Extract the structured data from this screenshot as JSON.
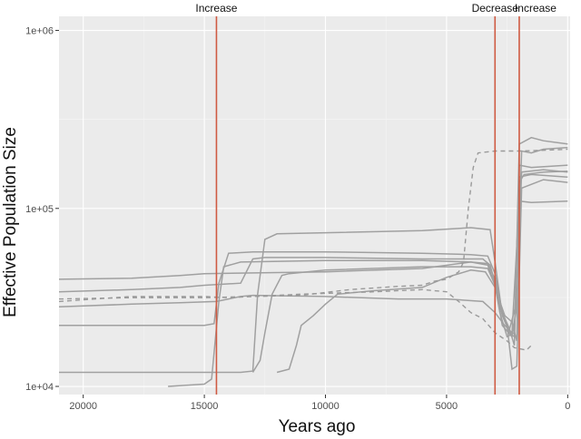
{
  "chart_data": {
    "type": "line",
    "title": "",
    "xlabel": "Years ago",
    "ylabel": "Effective Population Size",
    "x_reversed": true,
    "xlim": [
      21000,
      -100
    ],
    "ylim": [
      9000,
      1200000
    ],
    "y_scale": "log",
    "grid": true,
    "x_ticks": [
      {
        "value": 20000,
        "label": "20000"
      },
      {
        "value": 15000,
        "label": "15000"
      },
      {
        "value": 10000,
        "label": "10000"
      },
      {
        "value": 5000,
        "label": "5000"
      },
      {
        "value": 0,
        "label": "0"
      }
    ],
    "y_ticks": [
      {
        "value": 10000,
        "label": "1e+04"
      },
      {
        "value": 100000,
        "label": "1e+05"
      },
      {
        "value": 1000000,
        "label": "1e+06"
      }
    ],
    "vlines": [
      {
        "x": 14500,
        "label": "Increase"
      },
      {
        "x": 3000,
        "label": "Decrease"
      },
      {
        "x": 2000,
        "label": "Increase"
      }
    ],
    "series": [
      {
        "style": "solid",
        "points": [
          [
            21000,
            40000
          ],
          [
            18000,
            40500
          ],
          [
            16000,
            42000
          ],
          [
            15000,
            43000
          ],
          [
            10000,
            44000
          ],
          [
            6000,
            46000
          ],
          [
            4000,
            50000
          ],
          [
            3300,
            48000
          ],
          [
            3000,
            37000
          ],
          [
            2800,
            26000
          ],
          [
            2500,
            19000
          ],
          [
            2200,
            20000
          ],
          [
            2000,
            140000
          ],
          [
            1800,
            155000
          ],
          [
            1000,
            160000
          ],
          [
            0,
            162000
          ]
        ]
      },
      {
        "style": "solid",
        "points": [
          [
            21000,
            34000
          ],
          [
            18000,
            35000
          ],
          [
            16000,
            36000
          ],
          [
            15000,
            37000
          ],
          [
            13500,
            38000
          ],
          [
            13000,
            52000
          ],
          [
            12500,
            53000
          ],
          [
            10000,
            53000
          ],
          [
            6000,
            52000
          ],
          [
            4000,
            52000
          ],
          [
            3500,
            52000
          ],
          [
            3200,
            48000
          ],
          [
            3000,
            38000
          ],
          [
            2700,
            22000
          ],
          [
            2300,
            19000
          ],
          [
            2100,
            28000
          ],
          [
            1900,
            210000
          ],
          [
            1500,
            205000
          ],
          [
            1000,
            215000
          ],
          [
            0,
            220000
          ]
        ]
      },
      {
        "style": "solid",
        "points": [
          [
            21000,
            28000
          ],
          [
            18000,
            29000
          ],
          [
            16000,
            29500
          ],
          [
            14500,
            30000
          ],
          [
            14000,
            31000
          ],
          [
            13500,
            32000
          ],
          [
            13000,
            32500
          ],
          [
            10000,
            32000
          ],
          [
            7000,
            31000
          ],
          [
            5000,
            31000
          ],
          [
            3500,
            30000
          ],
          [
            3000,
            26000
          ],
          [
            2600,
            22000
          ],
          [
            2300,
            20000
          ],
          [
            2000,
            110000
          ],
          [
            1500,
            108000
          ],
          [
            0,
            110000
          ]
        ]
      },
      {
        "style": "solid",
        "points": [
          [
            21000,
            22000
          ],
          [
            16000,
            22000
          ],
          [
            15000,
            22000
          ],
          [
            14600,
            22500
          ],
          [
            14400,
            38000
          ],
          [
            14000,
            56000
          ],
          [
            13000,
            57000
          ],
          [
            10000,
            57000
          ],
          [
            6000,
            56000
          ],
          [
            4000,
            55000
          ],
          [
            3300,
            54000
          ],
          [
            3000,
            43000
          ],
          [
            2700,
            26000
          ],
          [
            2400,
            21000
          ],
          [
            2100,
            30000
          ],
          [
            1900,
            160000
          ],
          [
            1000,
            165000
          ],
          [
            0,
            160000
          ]
        ]
      },
      {
        "style": "solid",
        "points": [
          [
            21000,
            12000
          ],
          [
            16000,
            12000
          ],
          [
            13500,
            12000
          ],
          [
            13000,
            12200
          ],
          [
            12800,
            33000
          ],
          [
            12500,
            67000
          ],
          [
            12000,
            72000
          ],
          [
            10000,
            73000
          ],
          [
            6000,
            75000
          ],
          [
            4000,
            78000
          ],
          [
            3200,
            76000
          ],
          [
            3000,
            50000
          ],
          [
            2700,
            25000
          ],
          [
            2400,
            21000
          ],
          [
            2200,
            17000
          ],
          [
            2000,
            230000
          ],
          [
            1500,
            250000
          ],
          [
            1000,
            240000
          ],
          [
            0,
            230000
          ]
        ]
      },
      {
        "style": "solid",
        "points": [
          [
            16500,
            10000
          ],
          [
            15000,
            10300
          ],
          [
            14700,
            11000
          ],
          [
            14400,
            30000
          ],
          [
            14200,
            47000
          ],
          [
            13500,
            50000
          ],
          [
            10000,
            51000
          ],
          [
            6000,
            51000
          ],
          [
            4000,
            50000
          ],
          [
            3300,
            49000
          ],
          [
            3000,
            40000
          ],
          [
            2800,
            28000
          ],
          [
            2500,
            22000
          ],
          [
            2300,
            12500
          ],
          [
            2100,
            13000
          ],
          [
            1900,
            130000
          ],
          [
            1000,
            145000
          ],
          [
            0,
            140000
          ]
        ]
      },
      {
        "style": "solid",
        "points": [
          [
            13000,
            12000
          ],
          [
            12700,
            14000
          ],
          [
            12500,
            20000
          ],
          [
            12200,
            33000
          ],
          [
            11800,
            42000
          ],
          [
            11500,
            43000
          ],
          [
            10000,
            45000
          ],
          [
            6000,
            47000
          ],
          [
            4000,
            47000
          ],
          [
            3300,
            46000
          ],
          [
            3000,
            37000
          ],
          [
            2700,
            25000
          ],
          [
            2400,
            20000
          ],
          [
            2200,
            19000
          ],
          [
            2000,
            175000
          ],
          [
            1500,
            170000
          ],
          [
            0,
            175000
          ]
        ]
      },
      {
        "style": "solid",
        "points": [
          [
            12000,
            12000
          ],
          [
            11500,
            12500
          ],
          [
            11200,
            17000
          ],
          [
            11000,
            22000
          ],
          [
            10500,
            25000
          ],
          [
            10000,
            29000
          ],
          [
            9500,
            33000
          ],
          [
            8000,
            34500
          ],
          [
            6000,
            36000
          ],
          [
            5000,
            41000
          ],
          [
            4000,
            45000
          ],
          [
            3400,
            44000
          ],
          [
            3000,
            36000
          ],
          [
            2800,
            30000
          ],
          [
            2600,
            25000
          ],
          [
            2300,
            23000
          ],
          [
            2100,
            18000
          ],
          [
            2000,
            150000
          ],
          [
            1500,
            155000
          ],
          [
            0,
            150000
          ]
        ]
      },
      {
        "style": "dashed",
        "points": [
          [
            21000,
            30000
          ],
          [
            18000,
            32000
          ],
          [
            15000,
            32000
          ],
          [
            14000,
            31500
          ],
          [
            13000,
            32000
          ],
          [
            11000,
            32500
          ],
          [
            9000,
            35000
          ],
          [
            7000,
            36500
          ],
          [
            6000,
            37000
          ],
          [
            5500,
            39000
          ],
          [
            5000,
            40000
          ],
          [
            4500,
            44000
          ],
          [
            4300,
            50000
          ],
          [
            4100,
            100000
          ],
          [
            3900,
            170000
          ],
          [
            3700,
            205000
          ],
          [
            3000,
            210000
          ],
          [
            2000,
            210000
          ],
          [
            1000,
            212000
          ],
          [
            0,
            215000
          ]
        ]
      },
      {
        "style": "dashed",
        "points": [
          [
            21000,
            31000
          ],
          [
            18000,
            31500
          ],
          [
            15000,
            31500
          ],
          [
            13000,
            32000
          ],
          [
            11000,
            33000
          ],
          [
            8000,
            34000
          ],
          [
            6000,
            35000
          ],
          [
            5000,
            34000
          ],
          [
            4500,
            30000
          ],
          [
            4000,
            26000
          ],
          [
            3500,
            24000
          ],
          [
            3000,
            20000
          ],
          [
            2500,
            18000
          ],
          [
            2200,
            16500
          ],
          [
            1700,
            16000
          ],
          [
            1500,
            17000
          ]
        ]
      }
    ]
  }
}
